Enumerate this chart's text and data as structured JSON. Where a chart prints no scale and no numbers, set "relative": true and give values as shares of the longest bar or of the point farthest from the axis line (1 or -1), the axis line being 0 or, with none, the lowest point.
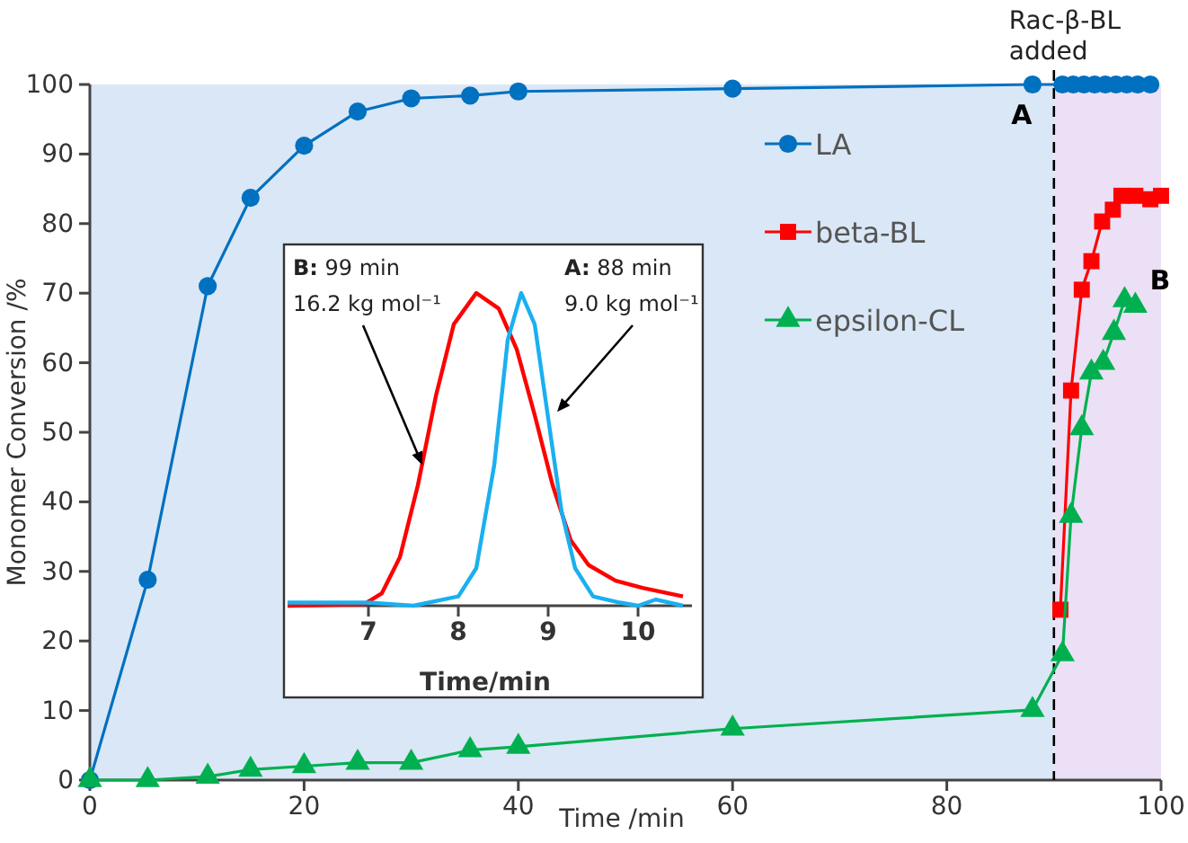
{
  "chart_data": [
    {
      "type": "line",
      "xlabel": "Time /min",
      "ylabel": "Monomer Conversion /%",
      "xlim": [
        0,
        100
      ],
      "ylim": [
        0,
        100
      ],
      "xticks": [
        0,
        20,
        40,
        60,
        80,
        100
      ],
      "yticks": [
        0,
        10,
        20,
        30,
        40,
        50,
        60,
        70,
        80,
        90,
        100
      ],
      "grid": false,
      "legend": "top right",
      "line_style": "solid",
      "series": [
        {
          "name": "LA",
          "color": "#0070c0",
          "marker": "circle",
          "x": [
            0,
            5.4,
            11,
            15,
            20,
            25,
            30,
            35.5,
            40,
            60,
            88,
            90.8,
            91.8,
            92.8,
            93.8,
            94.8,
            95.8,
            96.8,
            97.8,
            99
          ],
          "values": [
            0,
            28.8,
            71,
            83.7,
            91.2,
            96.1,
            98,
            98.4,
            99,
            99.4,
            100,
            100,
            100,
            100,
            100,
            100,
            100,
            100,
            100,
            100
          ]
        },
        {
          "name": "beta-BL",
          "color": "#ff0000",
          "marker": "square",
          "x": [
            90.6,
            91.6,
            92.6,
            93.5,
            94.5,
            95.5,
            96.3,
            97.6,
            99,
            100
          ],
          "values": [
            24.5,
            56,
            70.5,
            74.6,
            80.3,
            82,
            84,
            84,
            83.5,
            84
          ]
        },
        {
          "name": "epsilon-CL",
          "color": "#00b050",
          "marker": "triangle",
          "x": [
            0,
            5.4,
            11,
            15,
            20,
            25,
            30,
            35.5,
            40,
            60,
            88,
            90.8,
            91.6,
            92.6,
            93.5,
            94.6,
            95.6,
            96.6,
            97.6
          ],
          "values": [
            0,
            0,
            0.5,
            1.5,
            2,
            2.5,
            2.5,
            4.3,
            4.8,
            7.4,
            10.1,
            18.1,
            38,
            50.6,
            58.6,
            60,
            64.3,
            69,
            68.2
          ]
        }
      ],
      "ref_lines": [
        {
          "axis": "x",
          "value": 90,
          "label": "Rac-β-BL added",
          "color": "#000000",
          "line_style": "dashed"
        }
      ],
      "bands": [
        {
          "axis": "x",
          "from": 0,
          "to": 90,
          "color": "#dae7f6"
        },
        {
          "axis": "x",
          "from": 90,
          "to": 100,
          "color": "#ebe0f5"
        }
      ],
      "annotations": [
        {
          "text": "A",
          "x": 88,
          "y": 100
        },
        {
          "text": "B",
          "x": 97.6,
          "y": 69
        }
      ]
    },
    {
      "type": "line",
      "relative": true,
      "xlabel": "Time/min",
      "xlim": [
        6.1,
        10.6
      ],
      "xticks": [
        7,
        8,
        9,
        10
      ],
      "tick_labels": "x",
      "grid": false,
      "marker": "none",
      "line_style": "solid",
      "series": [
        {
          "color": "#ff0000",
          "x": [
            6.1,
            6.95,
            7.15,
            7.35,
            7.55,
            7.75,
            7.95,
            8.2,
            8.45,
            8.65,
            8.85,
            9.05,
            9.25,
            9.45,
            9.75,
            10.05,
            10.5
          ],
          "values": [
            0,
            0.005,
            0.04,
            0.155,
            0.385,
            0.67,
            0.9,
            1,
            0.95,
            0.82,
            0.61,
            0.385,
            0.21,
            0.13,
            0.08,
            0.057,
            0.03
          ]
        },
        {
          "color": "#1ab0f0",
          "x": [
            6.1,
            7,
            7.5,
            8,
            8.2,
            8.4,
            8.55,
            8.7,
            8.85,
            9,
            9.15,
            9.3,
            9.5,
            9.8,
            10,
            10.2,
            10.5
          ],
          "values": [
            0.01,
            0.01,
            0,
            0.03,
            0.12,
            0.45,
            0.85,
            1,
            0.9,
            0.6,
            0.3,
            0.12,
            0.03,
            0.01,
            0,
            0.02,
            0
          ]
        }
      ],
      "annotations": [
        {
          "text": "B: 99 min\n16.2 kg mol⁻¹",
          "x": 7.6,
          "y": 0.45
        },
        {
          "text": "A: 88 min\n9.0 kg mol⁻¹",
          "x": 9.1,
          "y": 0.62
        }
      ]
    }
  ]
}
